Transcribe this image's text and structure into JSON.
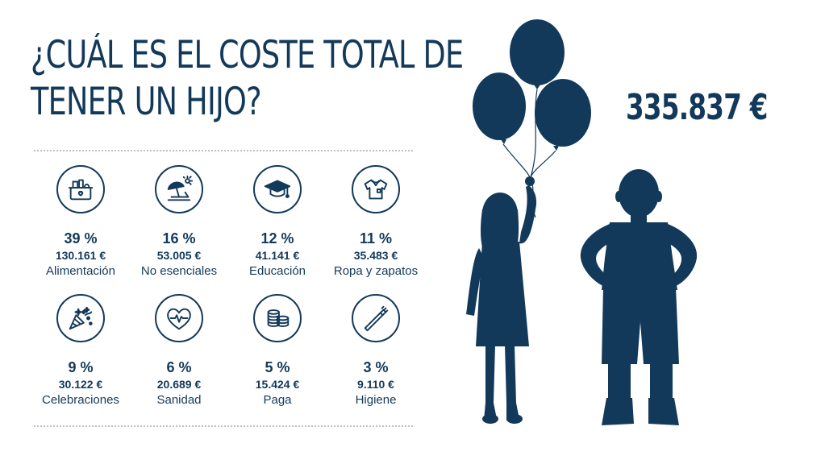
{
  "title": {
    "line1": "¿CUÁL ES EL COSTE TOTAL DE",
    "line2": "TENER UN HIJO?"
  },
  "total": "335.837 €",
  "colors": {
    "primary": "#13395a",
    "divider": "#b9c2cb"
  },
  "categories": [
    {
      "icon": "grocery-basket-icon",
      "percent": "39 %",
      "amount": "130.161 €",
      "label": "Alimentación"
    },
    {
      "icon": "beach-umbrella-icon",
      "percent": "16 %",
      "amount": "53.005 €",
      "label": "No esenciales"
    },
    {
      "icon": "graduation-cap-icon",
      "percent": "12 %",
      "amount": "41.141 €",
      "label": "Educación"
    },
    {
      "icon": "shirt-icon",
      "percent": "11 %",
      "amount": "35.483 €",
      "label": "Ropa y zapatos"
    },
    {
      "icon": "party-popper-icon",
      "percent": "9 %",
      "amount": "30.122 €",
      "label": "Celebraciones"
    },
    {
      "icon": "heart-pulse-icon",
      "percent": "6 %",
      "amount": "20.689 €",
      "label": "Sanidad"
    },
    {
      "icon": "coin-stack-icon",
      "percent": "5 %",
      "amount": "15.424 €",
      "label": "Paga"
    },
    {
      "icon": "toothbrush-icon",
      "percent": "3 %",
      "amount": "9.110 €",
      "label": "Higiene"
    }
  ]
}
